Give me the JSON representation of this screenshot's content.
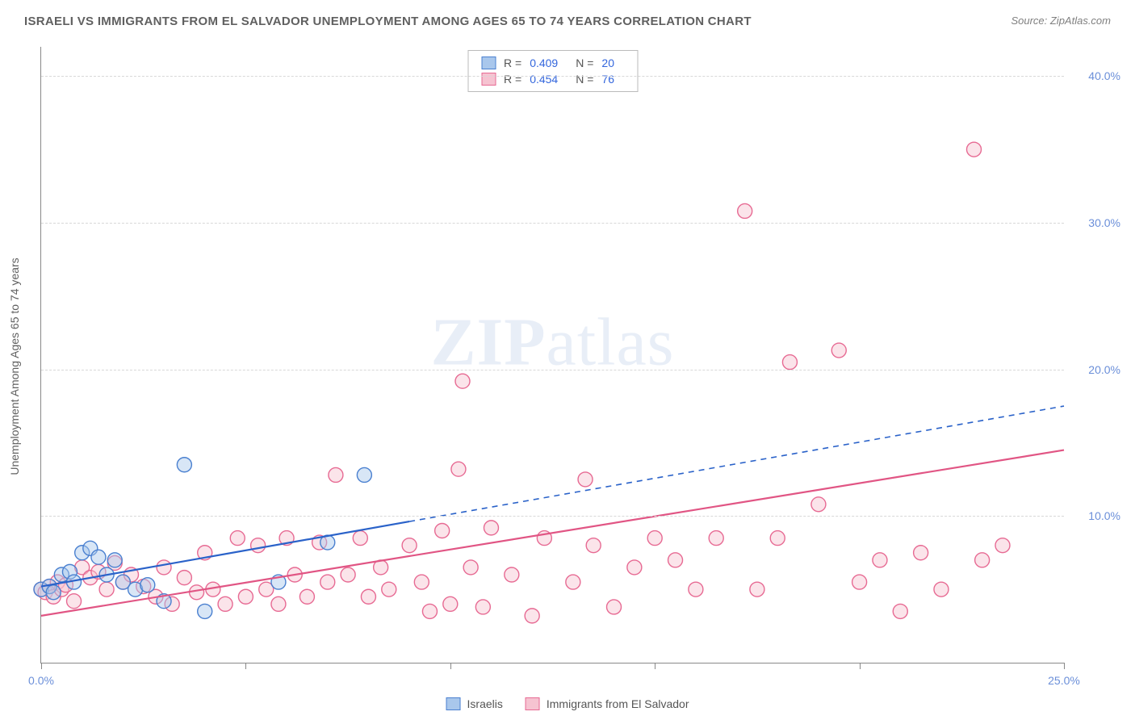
{
  "title": "ISRAELI VS IMMIGRANTS FROM EL SALVADOR UNEMPLOYMENT AMONG AGES 65 TO 74 YEARS CORRELATION CHART",
  "source_label": "Source: ",
  "source_name": "ZipAtlas.com",
  "y_axis_label": "Unemployment Among Ages 65 to 74 years",
  "watermark_zip": "ZIP",
  "watermark_atlas": "atlas",
  "chart": {
    "type": "scatter",
    "xlim": [
      0,
      25
    ],
    "ylim": [
      0,
      42
    ],
    "x_ticks": [
      0,
      5,
      10,
      15,
      20,
      25
    ],
    "x_tick_labels": {
      "0": "0.0%",
      "25": "25.0%"
    },
    "y_grid": [
      10,
      20,
      30,
      40
    ],
    "y_tick_labels": [
      "10.0%",
      "20.0%",
      "30.0%",
      "40.0%"
    ],
    "background_color": "#ffffff",
    "grid_color": "#d8d8d8",
    "axis_color": "#888888",
    "tick_label_color": "#6b8fd9",
    "marker_radius": 9,
    "marker_opacity": 0.45,
    "line_width": 2.2,
    "series": [
      {
        "name": "Israelis",
        "fill": "#a9c7ec",
        "stroke": "#4a80d0",
        "line_color": "#2a62c9",
        "R": "0.409",
        "N": "20",
        "trend": {
          "y_at_x0": 5.2,
          "y_at_x25": 17.5,
          "solid_until_x": 9.0
        },
        "points": [
          [
            0.0,
            5.0
          ],
          [
            0.2,
            5.2
          ],
          [
            0.3,
            4.8
          ],
          [
            0.5,
            6.0
          ],
          [
            0.7,
            6.2
          ],
          [
            0.8,
            5.5
          ],
          [
            1.0,
            7.5
          ],
          [
            1.2,
            7.8
          ],
          [
            1.4,
            7.2
          ],
          [
            1.6,
            6.0
          ],
          [
            1.8,
            7.0
          ],
          [
            2.0,
            5.5
          ],
          [
            2.3,
            5.0
          ],
          [
            2.6,
            5.3
          ],
          [
            3.0,
            4.2
          ],
          [
            3.5,
            13.5
          ],
          [
            4.0,
            3.5
          ],
          [
            5.8,
            5.5
          ],
          [
            7.9,
            12.8
          ],
          [
            7.0,
            8.2
          ]
        ]
      },
      {
        "name": "Immigrants from El Salvador",
        "fill": "#f6c3d1",
        "stroke": "#e76a93",
        "line_color": "#e15584",
        "R": "0.454",
        "N": "76",
        "trend": {
          "y_at_x0": 3.2,
          "y_at_x25": 14.5,
          "solid_until_x": 25.0
        },
        "points": [
          [
            0.0,
            5.0
          ],
          [
            0.1,
            4.8
          ],
          [
            0.2,
            5.2
          ],
          [
            0.3,
            4.5
          ],
          [
            0.4,
            5.5
          ],
          [
            0.5,
            5.0
          ],
          [
            0.6,
            5.3
          ],
          [
            0.8,
            4.2
          ],
          [
            1.0,
            6.5
          ],
          [
            1.2,
            5.8
          ],
          [
            1.4,
            6.2
          ],
          [
            1.6,
            5.0
          ],
          [
            1.8,
            6.8
          ],
          [
            2.0,
            5.5
          ],
          [
            2.2,
            6.0
          ],
          [
            2.5,
            5.2
          ],
          [
            2.8,
            4.5
          ],
          [
            3.0,
            6.5
          ],
          [
            3.2,
            4.0
          ],
          [
            3.5,
            5.8
          ],
          [
            3.8,
            4.8
          ],
          [
            4.0,
            7.5
          ],
          [
            4.2,
            5.0
          ],
          [
            4.5,
            4.0
          ],
          [
            4.8,
            8.5
          ],
          [
            5.0,
            4.5
          ],
          [
            5.3,
            8.0
          ],
          [
            5.5,
            5.0
          ],
          [
            5.8,
            4.0
          ],
          [
            6.0,
            8.5
          ],
          [
            6.2,
            6.0
          ],
          [
            6.5,
            4.5
          ],
          [
            6.8,
            8.2
          ],
          [
            7.0,
            5.5
          ],
          [
            7.2,
            12.8
          ],
          [
            7.5,
            6.0
          ],
          [
            7.8,
            8.5
          ],
          [
            8.0,
            4.5
          ],
          [
            8.3,
            6.5
          ],
          [
            8.5,
            5.0
          ],
          [
            9.0,
            8.0
          ],
          [
            9.3,
            5.5
          ],
          [
            9.5,
            3.5
          ],
          [
            9.8,
            9.0
          ],
          [
            10.0,
            4.0
          ],
          [
            10.2,
            13.2
          ],
          [
            10.3,
            19.2
          ],
          [
            10.5,
            6.5
          ],
          [
            10.8,
            3.8
          ],
          [
            11.0,
            9.2
          ],
          [
            11.5,
            6.0
          ],
          [
            12.0,
            3.2
          ],
          [
            12.3,
            8.5
          ],
          [
            13.0,
            5.5
          ],
          [
            13.3,
            12.5
          ],
          [
            13.5,
            8.0
          ],
          [
            14.0,
            3.8
          ],
          [
            14.5,
            6.5
          ],
          [
            15.0,
            8.5
          ],
          [
            15.5,
            7.0
          ],
          [
            16.0,
            5.0
          ],
          [
            16.5,
            8.5
          ],
          [
            17.2,
            30.8
          ],
          [
            17.5,
            5.0
          ],
          [
            18.0,
            8.5
          ],
          [
            18.3,
            20.5
          ],
          [
            19.0,
            10.8
          ],
          [
            19.5,
            21.3
          ],
          [
            20.0,
            5.5
          ],
          [
            20.5,
            7.0
          ],
          [
            21.0,
            3.5
          ],
          [
            21.5,
            7.5
          ],
          [
            22.0,
            5.0
          ],
          [
            22.8,
            35.0
          ],
          [
            23.0,
            7.0
          ],
          [
            23.5,
            8.0
          ]
        ]
      }
    ]
  },
  "stats_legend": {
    "r_label": "R =",
    "n_label": "N ="
  }
}
